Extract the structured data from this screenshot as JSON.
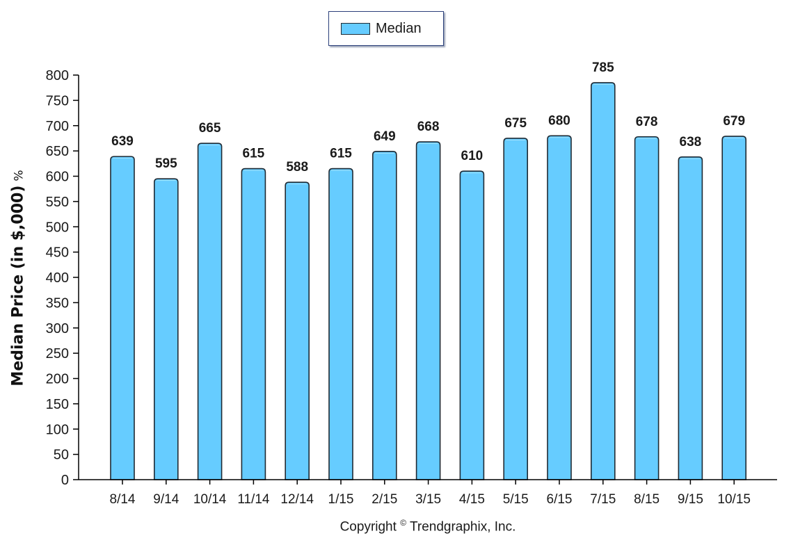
{
  "chart_data": {
    "type": "bar",
    "categories": [
      "8/14",
      "9/14",
      "10/14",
      "11/14",
      "12/14",
      "1/15",
      "2/15",
      "3/15",
      "4/15",
      "5/15",
      "6/15",
      "7/15",
      "8/15",
      "9/15",
      "10/15"
    ],
    "series": [
      {
        "name": "Median",
        "values": [
          639,
          595,
          665,
          615,
          588,
          615,
          649,
          668,
          610,
          675,
          680,
          785,
          678,
          638,
          679
        ],
        "color": "#66ccff"
      }
    ],
    "ylabel": "Median Price (in $,000)",
    "ylabel_suffix": "%",
    "xlabel": "",
    "ylim": [
      0,
      800
    ],
    "ytick_step": 50,
    "data_labels": true,
    "legend": "top-center",
    "grid": false
  },
  "footer": {
    "copyright_prefix": "Copyright",
    "copyright_symbol": "©",
    "copyright_owner": "Trendgraphix, Inc."
  },
  "colors": {
    "bar_fill": "#66ccff",
    "bar_stroke": "#1f2a33",
    "axis": "#000000",
    "text": "#1a1a1a"
  }
}
